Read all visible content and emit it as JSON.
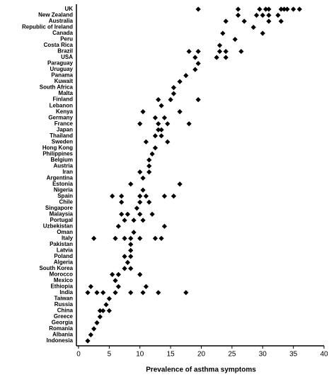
{
  "chart_data": {
    "type": "strip",
    "x_label": "Prevalence of asthma symptoms",
    "categories": [
      "UK",
      "New Zealand",
      "Australia",
      "Republic of Ireland",
      "Canada",
      "Peru",
      "Costa Rica",
      "Brazil",
      "USA",
      "Paraguay",
      "Uruguay",
      "Panama",
      "Kuwait",
      "South Africa",
      "Malta",
      "Finland",
      "Lebanon",
      "Kenya",
      "Germany",
      "France",
      "Japan",
      "Thailand",
      "Sweden",
      "Hong Kong",
      "Philippines",
      "Belgium",
      "Austria",
      "Iran",
      "Argentina",
      "Estonia",
      "Nigeria",
      "Spain",
      "Chile",
      "Singapore",
      "Malaysia",
      "Portugal",
      "Uzbekistan",
      "Oman",
      "Italy",
      "Pakistan",
      "Latvia",
      "Poland",
      "Algeria",
      "South Korea",
      "Morocco",
      "Mexico",
      "Ethiopia",
      "India",
      "Taiwan",
      "Russia",
      "China",
      "Greece",
      "Georgia",
      "Romania",
      "Albania",
      "Indonesia"
    ],
    "values": [
      [
        19.5,
        26,
        29.5,
        30.5,
        31,
        33,
        33.5,
        34,
        35,
        36
      ],
      [
        26,
        29,
        30,
        31,
        32.5
      ],
      [
        24,
        27,
        31,
        33
      ],
      [
        28.5
      ],
      [
        23.5,
        30
      ],
      [
        25.5
      ],
      [
        23
      ],
      [
        18,
        19.5,
        23,
        24,
        26.5
      ],
      [
        19,
        22.5,
        24
      ],
      [
        19.5
      ],
      [
        19
      ],
      [
        17.5
      ],
      [
        16.5
      ],
      [
        15.5
      ],
      [
        15.5
      ],
      [
        13,
        15,
        19.5
      ],
      [
        13.5
      ],
      [
        10.5,
        16.5
      ],
      [
        12.5,
        14
      ],
      [
        10,
        13,
        14.5,
        18
      ],
      [
        13,
        13.5
      ],
      [
        12.5,
        13.5
      ],
      [
        11,
        14.5
      ],
      [
        12.5
      ],
      [
        12
      ],
      [
        11.5
      ],
      [
        11.5
      ],
      [
        10,
        11.5
      ],
      [
        10.5
      ],
      [
        8.5,
        16.5
      ],
      [
        10.5
      ],
      [
        5.5,
        7,
        10,
        11,
        14,
        15.5
      ],
      [
        7,
        10,
        11.5
      ],
      [
        9.5
      ],
      [
        7,
        8,
        10,
        12
      ],
      [
        7.5,
        9,
        10.5
      ],
      [
        6.5,
        14
      ],
      [
        9
      ],
      [
        2.5,
        6,
        7.5,
        8.5,
        10,
        12.5,
        13.5
      ],
      [
        8.5
      ],
      [
        8.5
      ],
      [
        7.5,
        8.5
      ],
      [
        8
      ],
      [
        7.5,
        8.5
      ],
      [
        5.5,
        6.5,
        10
      ],
      [
        6
      ],
      [
        2,
        6.5,
        11
      ],
      [
        1.5,
        3,
        4,
        6,
        8.5,
        10.5,
        13,
        17.5
      ],
      [
        5
      ],
      [
        4.5
      ],
      [
        3.5,
        4,
        5
      ],
      [
        3.5
      ],
      [
        3
      ],
      [
        2.5
      ],
      [
        2
      ],
      [
        1.5
      ]
    ],
    "color": "#000000",
    "xlim": [
      0,
      40
    ],
    "xticks": [
      0,
      5,
      10,
      15,
      20,
      25,
      30,
      35,
      40
    ]
  }
}
